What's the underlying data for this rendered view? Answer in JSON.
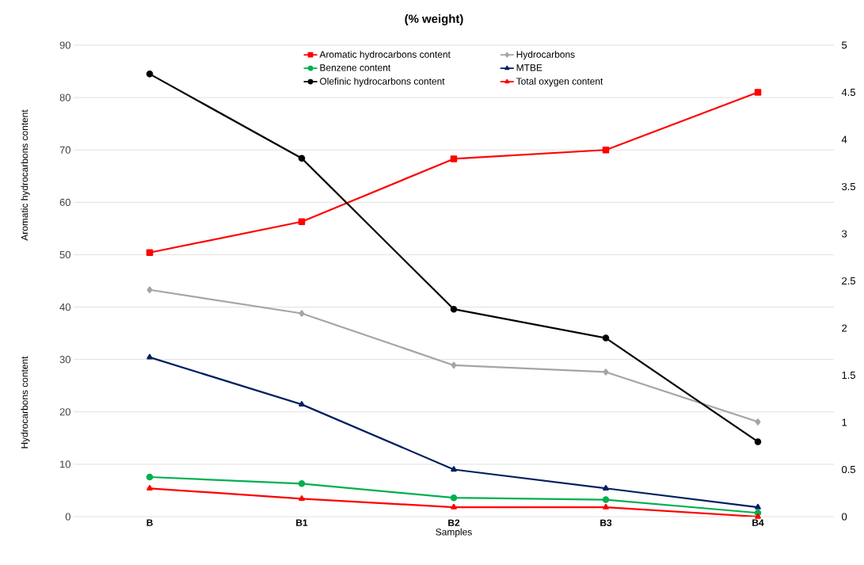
{
  "chart_data": {
    "type": "line",
    "title": "(% weight)",
    "xlabel": "Samples",
    "ylabel": "Aromatic hydrocarbons content",
    "annotations": [
      "Hydrocarbons content"
    ],
    "categories": [
      "B",
      "B1",
      "B2",
      "B3",
      "B4"
    ],
    "series": [
      {
        "name": "Aromatic hydrocarbons content",
        "color": "#ff0000",
        "marker": "square",
        "values": [
          50.4,
          56.3,
          68.3,
          70.0,
          81.0
        ]
      },
      {
        "name": "Hydrocarbons",
        "color": "#a5a5a5",
        "marker": "diamond",
        "values": [
          43.3,
          38.8,
          28.9,
          27.6,
          18.1
        ]
      },
      {
        "name": "Benzene content",
        "color": "#00b050",
        "marker": "circle",
        "axis": "y2",
        "values": [
          0.42,
          0.35,
          0.2,
          0.18,
          0.04
        ]
      },
      {
        "name": "MTBE",
        "color": "#002060",
        "marker": "triangle",
        "axis": "y2",
        "values": [
          1.69,
          1.19,
          0.5,
          0.3,
          0.1
        ]
      },
      {
        "name": "Olefinic hydrocarbons content",
        "color": "#000000",
        "marker": "circle",
        "values": [
          84.5,
          68.4,
          39.6,
          34.1,
          14.3
        ]
      },
      {
        "name": "Total oxygen content",
        "color": "#ff0000",
        "marker": "triangle",
        "axis": "y2",
        "values": [
          0.3,
          0.19,
          0.1,
          0.1,
          0.0
        ]
      }
    ],
    "ylim": [
      0,
      90
    ],
    "yticks": [
      0,
      10,
      20,
      30,
      40,
      50,
      60,
      70,
      80,
      90
    ],
    "y2lim": [
      0,
      5
    ],
    "y2ticks": [
      0,
      0.5,
      1,
      1.5,
      2,
      2.5,
      3,
      3.5,
      4,
      4.5,
      5
    ],
    "grid": "y",
    "legend": "top",
    "line_style": "solid"
  }
}
